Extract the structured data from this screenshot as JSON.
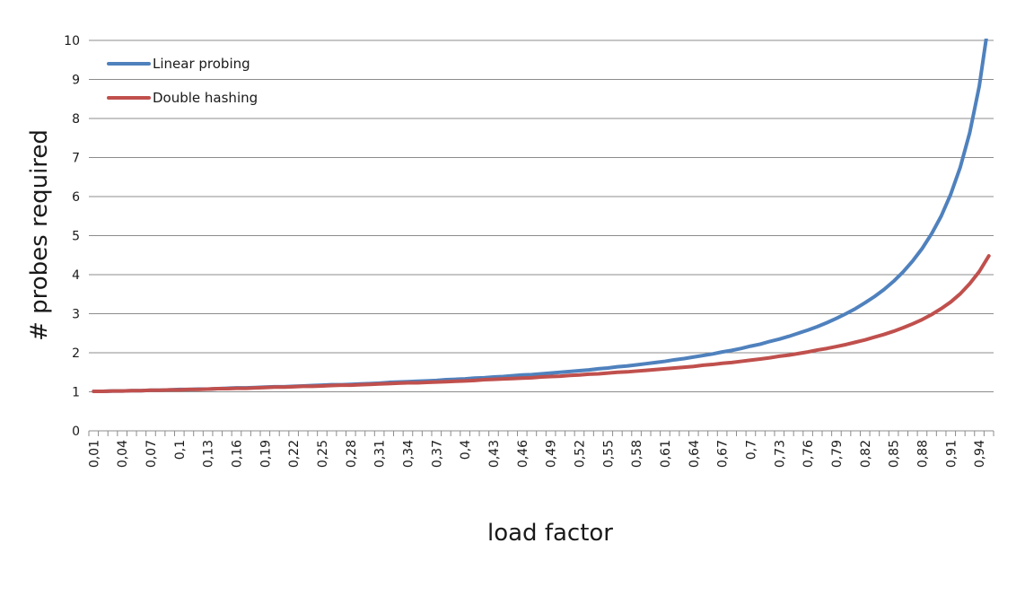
{
  "chart_data": {
    "type": "line",
    "title": "",
    "xlabel": "load factor",
    "ylabel": "# probes required",
    "ylim": [
      0,
      10
    ],
    "yticks": [
      0,
      1,
      2,
      3,
      4,
      5,
      6,
      7,
      8,
      9,
      10
    ],
    "grid": "horizontal",
    "legend_position": "top-left",
    "x": [
      0.01,
      0.02,
      0.03,
      0.04,
      0.05,
      0.06,
      0.07,
      0.08,
      0.09,
      0.1,
      0.11,
      0.12,
      0.13,
      0.14,
      0.15,
      0.16,
      0.17,
      0.18,
      0.19,
      0.2,
      0.21,
      0.22,
      0.23,
      0.24,
      0.25,
      0.26,
      0.27,
      0.28,
      0.29,
      0.3,
      0.31,
      0.32,
      0.33,
      0.34,
      0.35,
      0.36,
      0.37,
      0.38,
      0.39,
      0.4,
      0.41,
      0.42,
      0.43,
      0.44,
      0.45,
      0.46,
      0.47,
      0.48,
      0.49,
      0.5,
      0.51,
      0.52,
      0.53,
      0.54,
      0.55,
      0.56,
      0.57,
      0.58,
      0.59,
      0.6,
      0.61,
      0.62,
      0.63,
      0.64,
      0.65,
      0.66,
      0.67,
      0.68,
      0.69,
      0.7,
      0.71,
      0.72,
      0.73,
      0.74,
      0.75,
      0.76,
      0.77,
      0.78,
      0.79,
      0.8,
      0.81,
      0.82,
      0.83,
      0.84,
      0.85,
      0.86,
      0.87,
      0.88,
      0.89,
      0.9,
      0.91,
      0.92,
      0.93,
      0.94,
      0.95
    ],
    "x_tick_labels": [
      "0,01",
      "0,04",
      "0,07",
      "0,1",
      "0,13",
      "0,16",
      "0,19",
      "0,22",
      "0,25",
      "0,28",
      "0,31",
      "0,34",
      "0,37",
      "0,4",
      "0,43",
      "0,46",
      "0,49",
      "0,52",
      "0,55",
      "0,58",
      "0,61",
      "0,64",
      "0,67",
      "0,7",
      "0,73",
      "0,76",
      "0,79",
      "0,82",
      "0,85",
      "0,88",
      "0,91",
      "0,94"
    ],
    "x_tick_values": [
      0.01,
      0.04,
      0.07,
      0.1,
      0.13,
      0.16,
      0.19,
      0.22,
      0.25,
      0.28,
      0.31,
      0.34,
      0.37,
      0.4,
      0.43,
      0.46,
      0.49,
      0.52,
      0.55,
      0.58,
      0.61,
      0.64,
      0.67,
      0.7,
      0.73,
      0.76,
      0.79,
      0.82,
      0.85,
      0.88,
      0.91,
      0.94
    ],
    "series": [
      {
        "name": "Linear probing",
        "color": "#4f81bd",
        "values": [
          1.01,
          1.01,
          1.02,
          1.02,
          1.03,
          1.03,
          1.04,
          1.04,
          1.05,
          1.06,
          1.06,
          1.07,
          1.07,
          1.08,
          1.09,
          1.1,
          1.1,
          1.11,
          1.12,
          1.13,
          1.13,
          1.14,
          1.15,
          1.16,
          1.17,
          1.18,
          1.18,
          1.19,
          1.2,
          1.21,
          1.22,
          1.24,
          1.25,
          1.26,
          1.27,
          1.28,
          1.29,
          1.31,
          1.32,
          1.33,
          1.35,
          1.36,
          1.38,
          1.39,
          1.41,
          1.43,
          1.44,
          1.46,
          1.48,
          1.5,
          1.52,
          1.54,
          1.56,
          1.59,
          1.61,
          1.64,
          1.66,
          1.69,
          1.72,
          1.75,
          1.78,
          1.82,
          1.85,
          1.89,
          1.93,
          1.97,
          2.02,
          2.06,
          2.11,
          2.17,
          2.22,
          2.29,
          2.35,
          2.42,
          2.5,
          2.58,
          2.67,
          2.77,
          2.88,
          3.0,
          3.13,
          3.28,
          3.44,
          3.62,
          3.83,
          4.07,
          4.35,
          4.67,
          5.05,
          5.5,
          6.06,
          6.75,
          7.64,
          8.83,
          10.5
        ]
      },
      {
        "name": "Double hashing",
        "color": "#c0504d",
        "values": [
          1.01,
          1.01,
          1.02,
          1.02,
          1.03,
          1.03,
          1.04,
          1.04,
          1.05,
          1.05,
          1.06,
          1.06,
          1.07,
          1.08,
          1.08,
          1.09,
          1.09,
          1.1,
          1.11,
          1.12,
          1.12,
          1.13,
          1.14,
          1.14,
          1.15,
          1.16,
          1.17,
          1.17,
          1.18,
          1.19,
          1.2,
          1.21,
          1.22,
          1.23,
          1.23,
          1.24,
          1.25,
          1.26,
          1.27,
          1.28,
          1.29,
          1.31,
          1.32,
          1.33,
          1.34,
          1.35,
          1.36,
          1.38,
          1.39,
          1.4,
          1.42,
          1.43,
          1.45,
          1.46,
          1.48,
          1.5,
          1.51,
          1.53,
          1.55,
          1.57,
          1.59,
          1.61,
          1.63,
          1.65,
          1.68,
          1.7,
          1.73,
          1.75,
          1.78,
          1.81,
          1.84,
          1.87,
          1.91,
          1.94,
          1.98,
          2.02,
          2.07,
          2.11,
          2.16,
          2.21,
          2.27,
          2.33,
          2.4,
          2.47,
          2.55,
          2.64,
          2.74,
          2.85,
          2.98,
          3.13,
          3.3,
          3.51,
          3.77,
          4.08,
          4.48
        ]
      }
    ]
  }
}
